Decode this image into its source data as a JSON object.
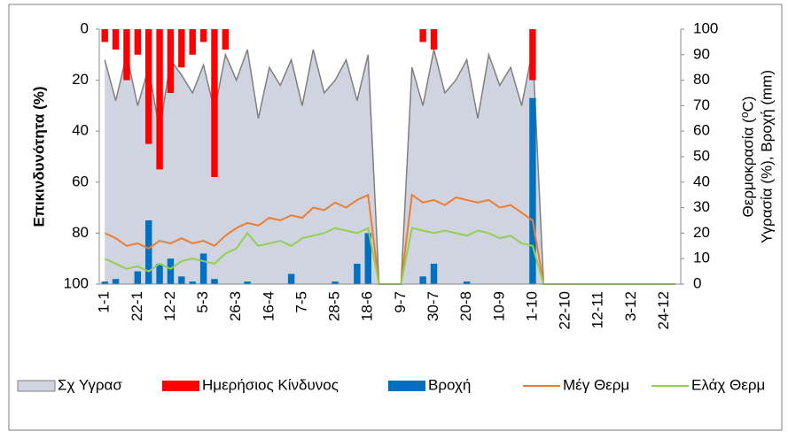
{
  "chart_data": {
    "type": "combo",
    "y_title": "Επικινδυνότητα (%)",
    "y2_title": [
      "Θερμοκρασία (⁰C)",
      "Υγρασία (%), Βροχή (mm)"
    ],
    "categories": [
      "1-1",
      null,
      null,
      "22-1",
      null,
      null,
      "12-2",
      null,
      null,
      "5-3",
      null,
      null,
      "26-3",
      null,
      null,
      "16-4",
      null,
      null,
      "7-5",
      null,
      null,
      "28-5",
      null,
      null,
      "18-6",
      null,
      null,
      "9-7",
      null,
      null,
      "30-7",
      null,
      null,
      "20-8",
      null,
      null,
      "10-9",
      null,
      null,
      "1-10",
      null,
      null,
      "22-10",
      null,
      null,
      "12-11",
      null,
      null,
      "3-12",
      null,
      null,
      "24-12",
      null
    ],
    "ylim": [
      100,
      0
    ],
    "yticks": [
      0,
      20,
      40,
      60,
      80,
      100
    ],
    "y2lim": [
      0,
      100
    ],
    "y2ticks": [
      0,
      10,
      20,
      30,
      40,
      50,
      60,
      70,
      80,
      90,
      100
    ],
    "series": [
      {
        "name": "Σχ Υγρασ",
        "type": "area",
        "axis": "y2",
        "color": "#d0d4e0",
        "line_color": "#7f7f7f",
        "values": [
          88,
          72,
          90,
          70,
          85,
          60,
          88,
          82,
          75,
          86,
          68,
          90,
          80,
          92,
          65,
          85,
          78,
          88,
          70,
          92,
          75,
          80,
          88,
          72,
          90,
          0,
          0,
          0,
          85,
          70,
          92,
          75,
          80,
          88,
          65,
          90,
          78,
          85,
          70,
          92,
          0,
          0,
          0,
          0,
          0,
          0,
          0,
          0,
          0,
          0,
          0,
          0,
          0
        ]
      },
      {
        "name": "Ημερήσιος Κίνδυνος",
        "type": "bar",
        "axis": "y",
        "color": "#ff0000",
        "values": [
          5,
          8,
          20,
          10,
          45,
          55,
          25,
          15,
          10,
          5,
          58,
          8,
          0,
          0,
          0,
          0,
          0,
          0,
          0,
          0,
          0,
          0,
          0,
          0,
          0,
          0,
          0,
          0,
          0,
          5,
          8,
          0,
          0,
          0,
          0,
          0,
          0,
          0,
          0,
          20,
          0,
          0,
          0,
          0,
          0,
          0,
          0,
          0,
          0,
          0,
          0,
          0,
          0
        ]
      },
      {
        "name": "Βροχή",
        "type": "bar",
        "axis": "y2",
        "color": "#0070c0",
        "values": [
          1,
          2,
          0,
          5,
          25,
          8,
          10,
          3,
          1,
          12,
          2,
          0,
          0,
          1,
          0,
          0,
          0,
          4,
          0,
          0,
          0,
          1,
          0,
          8,
          20,
          0,
          0,
          0,
          0,
          3,
          8,
          0,
          0,
          1,
          0,
          0,
          0,
          0,
          0,
          73,
          0,
          0,
          0,
          0,
          0,
          0,
          0,
          0,
          0,
          0,
          0,
          0,
          0
        ]
      },
      {
        "name": "Μέγ Θερμ",
        "type": "line",
        "axis": "y2",
        "color": "#ed7d31",
        "values": [
          20,
          18,
          15,
          16,
          14,
          17,
          16,
          18,
          16,
          17,
          15,
          19,
          22,
          24,
          23,
          26,
          25,
          27,
          26,
          30,
          29,
          32,
          30,
          33,
          35,
          0,
          0,
          0,
          35,
          32,
          33,
          31,
          34,
          33,
          32,
          33,
          30,
          31,
          28,
          25,
          0,
          0,
          0,
          0,
          0,
          0,
          0,
          0,
          0,
          0,
          0,
          0,
          0
        ]
      },
      {
        "name": "Ελάχ Θερμ",
        "type": "line",
        "axis": "y2",
        "color": "#92d050",
        "values": [
          10,
          8,
          6,
          7,
          5,
          8,
          6,
          9,
          10,
          9,
          8,
          12,
          14,
          20,
          15,
          16,
          17,
          15,
          18,
          19,
          20,
          22,
          21,
          20,
          22,
          0,
          0,
          0,
          22,
          21,
          20,
          21,
          20,
          19,
          21,
          20,
          18,
          19,
          16,
          15,
          0,
          0,
          0,
          0,
          0,
          0,
          0,
          0,
          0,
          0,
          0,
          0,
          0
        ]
      }
    ]
  }
}
